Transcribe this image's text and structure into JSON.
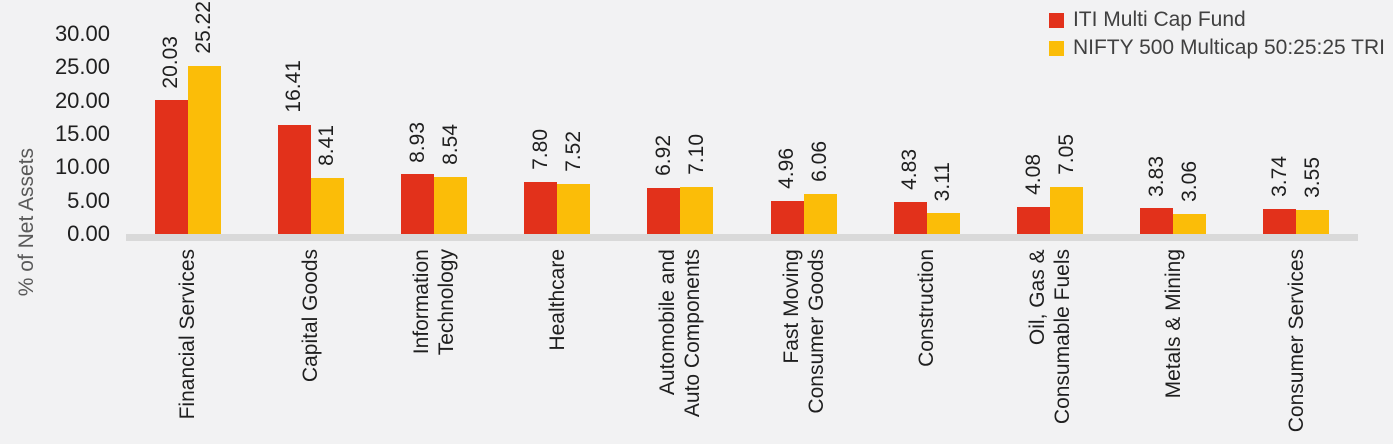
{
  "colors": {
    "fund_red": "#E2311B",
    "benchmark_yellow": "#FBBD08",
    "background": "#F2F2F3",
    "axis_line": "#D9D9D9",
    "label_text": "#1F1F1F",
    "axis_title_text": "#595959",
    "legend_text": "#404040"
  },
  "chart_data": {
    "type": "bar",
    "title": "",
    "xlabel": "",
    "ylabel": "% of Net Assets",
    "ylim": [
      0,
      30
    ],
    "yticks": [
      "30.00",
      "25.00",
      "20.00",
      "15.00",
      "10.00",
      "5.00",
      "0.00"
    ],
    "grid": false,
    "legend_position": "top-right",
    "categories": [
      "Financial Services",
      "Capital Goods",
      "Information Technology",
      "Healthcare",
      "Automobile and Auto Components",
      "Fast Moving Consumer Goods",
      "Construction",
      "Oil, Gas & Consumable Fuels",
      "Metals & Mining",
      "Consumer Services"
    ],
    "category_label_lines": [
      [
        "Financial Services"
      ],
      [
        "Capital Goods"
      ],
      [
        "Information",
        "Technology"
      ],
      [
        "Healthcare"
      ],
      [
        "Automobile and",
        "Auto Components"
      ],
      [
        "Fast Moving",
        "Consumer Goods"
      ],
      [
        "Construction"
      ],
      [
        "Oil, Gas &",
        "Consumable Fuels"
      ],
      [
        "Metals & Mining"
      ],
      [
        "Consumer Services"
      ]
    ],
    "series": [
      {
        "name": "ITI Multi Cap Fund",
        "color": "#E2311B",
        "values": [
          20.03,
          16.41,
          8.93,
          7.8,
          6.92,
          4.96,
          4.83,
          4.08,
          3.83,
          3.74
        ],
        "labels": [
          "20.03",
          "16.41",
          "8.93",
          "7.80",
          "6.92",
          "4.96",
          "4.83",
          "4.08",
          "3.83",
          "3.74"
        ]
      },
      {
        "name": "NIFTY 500 Multicap 50:25:25 TRI",
        "color": "#FBBD08",
        "values": [
          25.22,
          8.41,
          8.54,
          7.52,
          7.1,
          6.06,
          3.11,
          7.05,
          3.06,
          3.55
        ],
        "labels": [
          "25.22",
          "8.41",
          "8.54",
          "7.52",
          "7.10",
          "6.06",
          "3.11",
          "7.05",
          "3.06",
          "3.55"
        ]
      }
    ]
  }
}
